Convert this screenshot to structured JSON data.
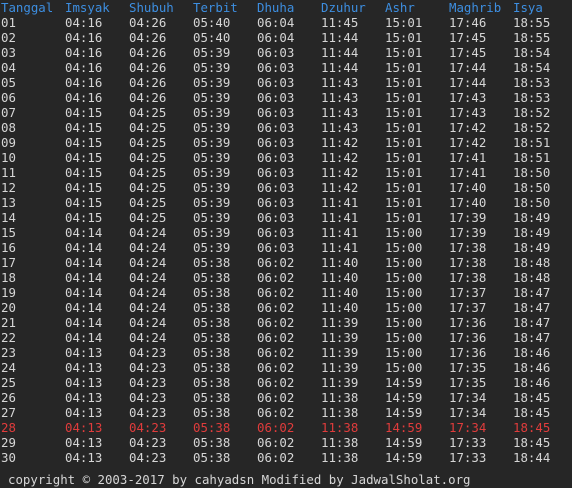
{
  "colors": {
    "background": "#262626",
    "text": "#d6d6d6",
    "header": "#3d8ee0",
    "highlight": "#e03c3c"
  },
  "headers": [
    "Tanggal",
    "Imsyak",
    "Shubuh",
    "Terbit",
    "Dhuha",
    "Dzuhur",
    "Ashr",
    "Maghrib",
    "Isya"
  ],
  "highlight_row": "28",
  "rows": [
    [
      "01",
      "04:16",
      "04:26",
      "05:40",
      "06:04",
      "11:45",
      "15:01",
      "17:46",
      "18:55"
    ],
    [
      "02",
      "04:16",
      "04:26",
      "05:40",
      "06:04",
      "11:44",
      "15:01",
      "17:45",
      "18:55"
    ],
    [
      "03",
      "04:16",
      "04:26",
      "05:39",
      "06:03",
      "11:44",
      "15:01",
      "17:45",
      "18:54"
    ],
    [
      "04",
      "04:16",
      "04:26",
      "05:39",
      "06:03",
      "11:44",
      "15:01",
      "17:44",
      "18:54"
    ],
    [
      "05",
      "04:16",
      "04:26",
      "05:39",
      "06:03",
      "11:43",
      "15:01",
      "17:44",
      "18:53"
    ],
    [
      "06",
      "04:16",
      "04:26",
      "05:39",
      "06:03",
      "11:43",
      "15:01",
      "17:43",
      "18:53"
    ],
    [
      "07",
      "04:15",
      "04:25",
      "05:39",
      "06:03",
      "11:43",
      "15:01",
      "17:43",
      "18:52"
    ],
    [
      "08",
      "04:15",
      "04:25",
      "05:39",
      "06:03",
      "11:43",
      "15:01",
      "17:42",
      "18:52"
    ],
    [
      "09",
      "04:15",
      "04:25",
      "05:39",
      "06:03",
      "11:42",
      "15:01",
      "17:42",
      "18:51"
    ],
    [
      "10",
      "04:15",
      "04:25",
      "05:39",
      "06:03",
      "11:42",
      "15:01",
      "17:41",
      "18:51"
    ],
    [
      "11",
      "04:15",
      "04:25",
      "05:39",
      "06:03",
      "11:42",
      "15:01",
      "17:41",
      "18:50"
    ],
    [
      "12",
      "04:15",
      "04:25",
      "05:39",
      "06:03",
      "11:42",
      "15:01",
      "17:40",
      "18:50"
    ],
    [
      "13",
      "04:15",
      "04:25",
      "05:39",
      "06:03",
      "11:41",
      "15:01",
      "17:40",
      "18:50"
    ],
    [
      "14",
      "04:15",
      "04:25",
      "05:39",
      "06:03",
      "11:41",
      "15:01",
      "17:39",
      "18:49"
    ],
    [
      "15",
      "04:14",
      "04:24",
      "05:39",
      "06:03",
      "11:41",
      "15:00",
      "17:39",
      "18:49"
    ],
    [
      "16",
      "04:14",
      "04:24",
      "05:39",
      "06:03",
      "11:41",
      "15:00",
      "17:38",
      "18:49"
    ],
    [
      "17",
      "04:14",
      "04:24",
      "05:38",
      "06:02",
      "11:40",
      "15:00",
      "17:38",
      "18:48"
    ],
    [
      "18",
      "04:14",
      "04:24",
      "05:38",
      "06:02",
      "11:40",
      "15:00",
      "17:38",
      "18:48"
    ],
    [
      "19",
      "04:14",
      "04:24",
      "05:38",
      "06:02",
      "11:40",
      "15:00",
      "17:37",
      "18:47"
    ],
    [
      "20",
      "04:14",
      "04:24",
      "05:38",
      "06:02",
      "11:40",
      "15:00",
      "17:37",
      "18:47"
    ],
    [
      "21",
      "04:14",
      "04:24",
      "05:38",
      "06:02",
      "11:39",
      "15:00",
      "17:36",
      "18:47"
    ],
    [
      "22",
      "04:14",
      "04:24",
      "05:38",
      "06:02",
      "11:39",
      "15:00",
      "17:36",
      "18:47"
    ],
    [
      "23",
      "04:13",
      "04:23",
      "05:38",
      "06:02",
      "11:39",
      "15:00",
      "17:36",
      "18:46"
    ],
    [
      "24",
      "04:13",
      "04:23",
      "05:38",
      "06:02",
      "11:39",
      "15:00",
      "17:35",
      "18:46"
    ],
    [
      "25",
      "04:13",
      "04:23",
      "05:38",
      "06:02",
      "11:39",
      "14:59",
      "17:35",
      "18:46"
    ],
    [
      "26",
      "04:13",
      "04:23",
      "05:38",
      "06:02",
      "11:38",
      "14:59",
      "17:34",
      "18:45"
    ],
    [
      "27",
      "04:13",
      "04:23",
      "05:38",
      "06:02",
      "11:38",
      "14:59",
      "17:34",
      "18:45"
    ],
    [
      "28",
      "04:13",
      "04:23",
      "05:38",
      "06:02",
      "11:38",
      "14:59",
      "17:34",
      "18:45"
    ],
    [
      "29",
      "04:13",
      "04:23",
      "05:38",
      "06:02",
      "11:38",
      "14:59",
      "17:33",
      "18:45"
    ],
    [
      "30",
      "04:13",
      "04:23",
      "05:38",
      "06:02",
      "11:38",
      "14:59",
      "17:33",
      "18:44"
    ]
  ],
  "footer": "copyright © 2003-2017 by cahyadsn Modified by JadwalSholat.org"
}
